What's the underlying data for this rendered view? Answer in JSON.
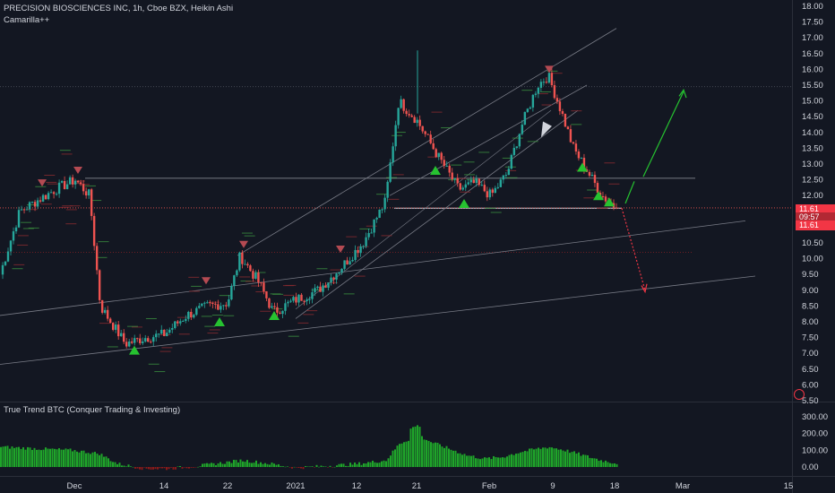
{
  "header": {
    "title": "PRECISION BIOSCIENCES INC, 1h, Cboe BZX, Heikin Ashi",
    "indicator": "Camarilla++"
  },
  "sub_header": {
    "title": "True Trend BTC (Conquer Trading & Investing)"
  },
  "price_tags": {
    "last": "11.61",
    "countdown": "09:57",
    "prev": "11.61"
  },
  "colors": {
    "background": "#131722",
    "up": "#26a69a",
    "down": "#ef5350",
    "axis_text": "#d1d4dc",
    "hist_up": "#1fa52a",
    "hist_down": "#8b1a1a",
    "arrow_up": "#26c230",
    "arrow_down": "#f23645"
  },
  "chart_data": [
    {
      "type": "candlestick",
      "style": "Heikin Ashi",
      "y_axis": {
        "ticks": [
          "18.00",
          "17.50",
          "17.00",
          "16.50",
          "16.00",
          "15.50",
          "15.00",
          "14.50",
          "14.00",
          "13.50",
          "13.00",
          "12.50",
          "12.00",
          "11.50",
          "11.00",
          "10.50",
          "10.00",
          "9.50",
          "9.00",
          "8.50",
          "8.00",
          "7.50",
          "7.00",
          "6.50",
          "6.00",
          "5.50"
        ],
        "min": 5.5,
        "max": 18.0
      },
      "x_axis": {
        "ticks": [
          "Dec",
          "14",
          "22",
          "2021",
          "12",
          "21",
          "Feb",
          "9",
          "18",
          "Mar",
          "15"
        ]
      },
      "close_path": [
        [
          "start",
          9.5
        ],
        [
          "Nov 25",
          11.5
        ],
        [
          "Nov 28",
          12.2
        ],
        [
          "Dec 1",
          12.5
        ],
        [
          "Dec 3",
          12.0
        ],
        [
          "Dec 6",
          8.5
        ],
        [
          "Dec 9",
          7.3
        ],
        [
          "Dec 12",
          7.5
        ],
        [
          "Dec 14",
          7.6
        ],
        [
          "Dec 17",
          8.2
        ],
        [
          "Dec 20",
          8.5
        ],
        [
          "Dec 22",
          8.6
        ],
        [
          "Dec 24",
          10.1
        ],
        [
          "Dec 27",
          9.2
        ],
        [
          "Dec 30",
          8.3
        ],
        [
          "2021",
          8.7
        ],
        [
          "Jan 5",
          9.0
        ],
        [
          "Jan 8",
          9.7
        ],
        [
          "Jan 12",
          10.5
        ],
        [
          "Jan 15",
          11.8
        ],
        [
          "Jan 19",
          15.0
        ],
        [
          "Jan 21",
          14.4
        ],
        [
          "Jan 24",
          13.2
        ],
        [
          "Jan 27",
          12.2
        ],
        [
          "Jan 30",
          12.4
        ],
        [
          "Feb 2",
          12.0
        ],
        [
          "Feb 4",
          12.7
        ],
        [
          "Feb 6",
          14.2
        ],
        [
          "Feb 8",
          15.5
        ],
        [
          "Feb 9",
          15.8
        ],
        [
          "Feb 11",
          14.7
        ],
        [
          "Feb 13",
          13.5
        ],
        [
          "Feb 15",
          12.8
        ],
        [
          "Feb 17",
          12.0
        ],
        [
          "Feb 18",
          11.61
        ]
      ],
      "last_price": 11.61,
      "projection": {
        "up_target": 15.3,
        "down_target": 9.0
      }
    },
    {
      "type": "histogram",
      "name": "True Trend BTC (Conquer Trading & Investing)",
      "y_axis": {
        "ticks": [
          "300.00",
          "200.00",
          "100.00",
          "0.00"
        ],
        "min": -30,
        "max": 320
      }
    }
  ]
}
